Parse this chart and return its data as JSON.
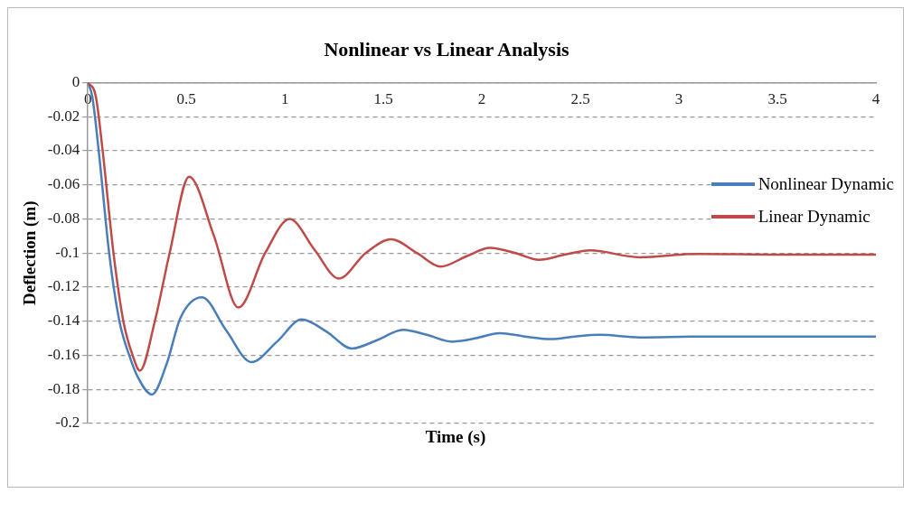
{
  "chart_data": {
    "type": "line",
    "title": "Nonlinear vs Linear Analysis",
    "xlabel": "Time (s)",
    "ylabel": "Deflection (m)",
    "xlim": [
      0,
      4
    ],
    "xticks": [
      0,
      0.5,
      1,
      1.5,
      2,
      2.5,
      3,
      3.5,
      4
    ],
    "ylim": [
      -0.2,
      0
    ],
    "yticks": [
      -0.2,
      -0.18,
      -0.16,
      -0.14,
      -0.12,
      -0.1,
      -0.08,
      -0.06,
      -0.04,
      -0.02,
      0
    ],
    "grid": "y",
    "legend": "right",
    "marker": "none",
    "line_style": "solid",
    "series": [
      {
        "name": "Nonlinear Dynamic",
        "color": "#4a7ebb",
        "x": [
          0,
          0.022,
          0.055,
          0.108,
          0.16,
          0.21,
          0.25,
          0.325,
          0.4,
          0.47,
          0.58,
          0.7,
          0.83,
          0.96,
          1.085,
          1.21,
          1.34,
          1.47,
          1.6,
          1.72,
          1.85,
          1.97,
          2.09,
          2.22,
          2.35,
          2.47,
          2.6,
          2.8,
          3.1,
          3.5,
          4
        ],
        "values": [
          0,
          -0.008,
          -0.04,
          -0.1,
          -0.14,
          -0.16,
          -0.172,
          -0.183,
          -0.165,
          -0.138,
          -0.126,
          -0.145,
          -0.164,
          -0.152,
          -0.139,
          -0.146,
          -0.156,
          -0.151,
          -0.145,
          -0.148,
          -0.152,
          -0.15,
          -0.147,
          -0.149,
          -0.1505,
          -0.149,
          -0.148,
          -0.1495,
          -0.149,
          -0.149,
          -0.149
        ]
      },
      {
        "name": "Linear Dynamic",
        "color": "#be4b48",
        "x": [
          0,
          0.04,
          0.075,
          0.13,
          0.18,
          0.227,
          0.264,
          0.34,
          0.415,
          0.514,
          0.64,
          0.764,
          0.9,
          1.024,
          1.15,
          1.274,
          1.41,
          1.54,
          1.67,
          1.79,
          1.92,
          2.04,
          2.17,
          2.29,
          2.42,
          2.55,
          2.8,
          3.1,
          3.5,
          4
        ],
        "values": [
          0,
          -0.008,
          -0.04,
          -0.1,
          -0.14,
          -0.16,
          -0.169,
          -0.14,
          -0.1,
          -0.0553,
          -0.09,
          -0.132,
          -0.1,
          -0.08,
          -0.098,
          -0.115,
          -0.1,
          -0.092,
          -0.1,
          -0.108,
          -0.102,
          -0.097,
          -0.1,
          -0.104,
          -0.101,
          -0.0985,
          -0.1025,
          -0.1005,
          -0.101,
          -0.101
        ]
      }
    ]
  }
}
